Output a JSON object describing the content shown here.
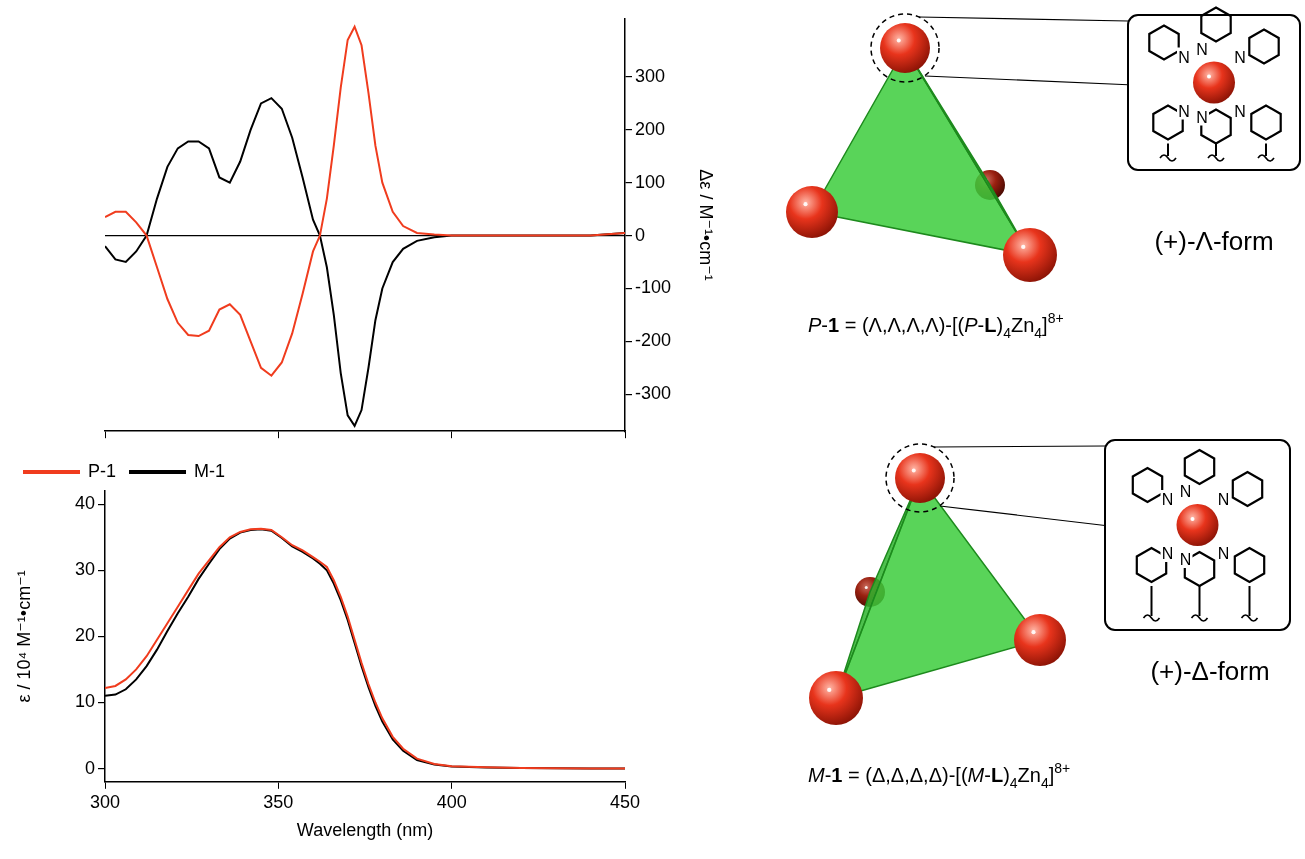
{
  "chart_data": [
    {
      "type": "line",
      "y2_label": "Δε / M⁻¹•cm⁻¹",
      "x": [
        300,
        303,
        306,
        309,
        312,
        315,
        318,
        321,
        324,
        327,
        330,
        333,
        336,
        339,
        342,
        345,
        348,
        351,
        354,
        357,
        360,
        362,
        364,
        366,
        368,
        370,
        372,
        374,
        376,
        378,
        380,
        383,
        386,
        390,
        395,
        400,
        410,
        420,
        430,
        440,
        450
      ],
      "series": [
        {
          "name": "P-1",
          "color": "#f03c1e",
          "axis": "y2",
          "values": [
            35,
            45,
            45,
            25,
            0,
            -60,
            -120,
            -165,
            -188,
            -190,
            -180,
            -140,
            -130,
            -150,
            -200,
            -250,
            -265,
            -240,
            -185,
            -110,
            -30,
            0,
            70,
            170,
            280,
            370,
            395,
            360,
            270,
            170,
            100,
            45,
            18,
            5,
            2,
            0,
            0,
            0,
            0,
            0,
            5
          ]
        },
        {
          "name": "M-1",
          "color": "#000000",
          "axis": "y2",
          "values": [
            -20,
            -45,
            -50,
            -30,
            0,
            70,
            130,
            165,
            178,
            178,
            165,
            110,
            100,
            140,
            200,
            250,
            260,
            240,
            185,
            110,
            30,
            0,
            -60,
            -150,
            -260,
            -340,
            -360,
            -330,
            -250,
            -160,
            -100,
            -50,
            -25,
            -10,
            -3,
            0,
            0,
            0,
            0,
            0,
            5
          ]
        }
      ],
      "xlim": [
        300,
        450
      ],
      "xticks": [
        300,
        350,
        400,
        450
      ],
      "y2lim": [
        -370,
        410
      ],
      "y2ticks": [
        -300,
        -200,
        -100,
        0,
        100,
        200,
        300
      ],
      "tick_labels": "y"
    },
    {
      "type": "line",
      "x_label": "Wavelength (nm)",
      "y_label": "ε / 10⁴ M⁻¹•cm⁻¹",
      "x": [
        300,
        303,
        306,
        309,
        312,
        315,
        318,
        321,
        324,
        327,
        330,
        333,
        336,
        339,
        342,
        345,
        348,
        351,
        354,
        357,
        360,
        362,
        364,
        366,
        368,
        370,
        372,
        374,
        376,
        378,
        380,
        383,
        386,
        390,
        395,
        400,
        410,
        420,
        430,
        440,
        450
      ],
      "series": [
        {
          "name": "P-1",
          "color": "#f03c1e",
          "values": [
            12.2,
            12.5,
            13.5,
            15,
            17,
            19.5,
            22,
            24.5,
            27,
            29.5,
            31.5,
            33.5,
            35,
            35.8,
            36.2,
            36.3,
            36.1,
            35,
            33.8,
            33,
            32,
            31.3,
            30.5,
            28.5,
            26,
            23,
            19.5,
            16,
            12.8,
            10,
            7.6,
            4.8,
            3,
            1.5,
            0.7,
            0.35,
            0.2,
            0.1,
            0.05,
            0.02,
            0
          ]
        },
        {
          "name": "M-1",
          "color": "#000000",
          "values": [
            11,
            11.2,
            12,
            13.5,
            15.5,
            18,
            20.8,
            23.5,
            26,
            28.7,
            31,
            33.2,
            34.8,
            35.7,
            36.1,
            36.2,
            36,
            34.9,
            33.6,
            32.8,
            31.8,
            31,
            30,
            28,
            25.5,
            22.5,
            19,
            15.5,
            12.3,
            9.5,
            7.1,
            4.4,
            2.7,
            1.3,
            0.6,
            0.3,
            0.15,
            0.08,
            0.04,
            0.02,
            0
          ]
        }
      ],
      "xlim": [
        300,
        450
      ],
      "xticks": [
        300,
        350,
        400,
        450
      ],
      "ylim": [
        -2,
        42
      ],
      "yticks": [
        0,
        10,
        20,
        30,
        40
      ],
      "legend": "top left"
    }
  ],
  "diagram": {
    "panels": [
      {
        "form_label": "(+)-Λ-form",
        "atom_labels": [
          "N",
          "N",
          "N",
          "N",
          "N",
          "N"
        ],
        "formula": [
          {
            "text": "P",
            "style": "italic"
          },
          {
            "text": "-",
            "style": "plain"
          },
          {
            "text": "1",
            "style": "bold"
          },
          {
            "text": " = (Λ,Λ,Λ,Λ)-[(",
            "style": "plain"
          },
          {
            "text": "P",
            "style": "italic"
          },
          {
            "text": "-",
            "style": "plain"
          },
          {
            "text": "L",
            "style": "bold"
          },
          {
            "text": ")",
            "style": "plain"
          },
          {
            "text": "4",
            "style": "sub"
          },
          {
            "text": "Zn",
            "style": "plain"
          },
          {
            "text": "4",
            "style": "sub"
          },
          {
            "text": "]",
            "style": "plain"
          },
          {
            "text": "8+",
            "style": "sup"
          }
        ]
      },
      {
        "form_label": "(+)-Δ-form",
        "atom_labels": [
          "N",
          "N",
          "N",
          "N",
          "N",
          "N"
        ],
        "formula": [
          {
            "text": "M",
            "style": "italic"
          },
          {
            "text": "-",
            "style": "plain"
          },
          {
            "text": "1",
            "style": "bold"
          },
          {
            "text": " = (Δ,Δ,Δ,Δ)-[(",
            "style": "plain"
          },
          {
            "text": "M",
            "style": "italic"
          },
          {
            "text": "-",
            "style": "plain"
          },
          {
            "text": "L",
            "style": "bold"
          },
          {
            "text": ")",
            "style": "plain"
          },
          {
            "text": "4",
            "style": "sub"
          },
          {
            "text": "Zn",
            "style": "plain"
          },
          {
            "text": "4",
            "style": "sub"
          },
          {
            "text": "]",
            "style": "plain"
          },
          {
            "text": "8+",
            "style": "sup"
          }
        ]
      }
    ]
  }
}
